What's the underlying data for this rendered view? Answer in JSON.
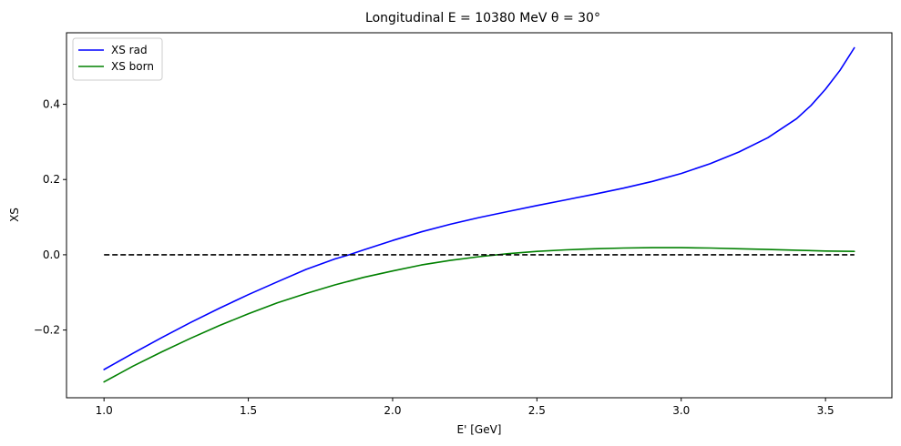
{
  "chart_data": {
    "type": "line",
    "title": "Longitudinal E = 10380 MeV θ = 30°",
    "xlabel": "E' [GeV]",
    "ylabel": "XS",
    "xlim": [
      0.87,
      3.73
    ],
    "ylim": [
      -0.38,
      0.59
    ],
    "xticks": [
      1.0,
      1.5,
      2.0,
      2.5,
      3.0,
      3.5
    ],
    "xtick_labels": [
      "1.0",
      "1.5",
      "2.0",
      "2.5",
      "3.0",
      "3.5"
    ],
    "yticks": [
      -0.2,
      0.0,
      0.2,
      0.4
    ],
    "ytick_labels": [
      "−0.2",
      "0.0",
      "0.2",
      "0.4"
    ],
    "grid": false,
    "legend": {
      "placement": "top-left",
      "entries": [
        "XS rad",
        "XS born"
      ]
    },
    "series": [
      {
        "name": "XS rad",
        "color": "#0000ff",
        "x": [
          1.0,
          1.1,
          1.2,
          1.3,
          1.4,
          1.5,
          1.6,
          1.7,
          1.8,
          1.85,
          1.9,
          2.0,
          2.1,
          2.2,
          2.3,
          2.4,
          2.5,
          2.6,
          2.7,
          2.8,
          2.9,
          3.0,
          3.1,
          3.2,
          3.3,
          3.4,
          3.45,
          3.5,
          3.55,
          3.6
        ],
        "y": [
          -0.305,
          -0.262,
          -0.22,
          -0.18,
          -0.142,
          -0.106,
          -0.072,
          -0.039,
          -0.011,
          0.0,
          0.013,
          0.038,
          0.061,
          0.081,
          0.099,
          0.115,
          0.131,
          0.146,
          0.161,
          0.177,
          0.195,
          0.216,
          0.242,
          0.273,
          0.311,
          0.362,
          0.397,
          0.44,
          0.49,
          0.55
        ]
      },
      {
        "name": "XS born",
        "color": "#008000",
        "x": [
          1.0,
          1.1,
          1.2,
          1.3,
          1.4,
          1.5,
          1.6,
          1.7,
          1.8,
          1.9,
          2.0,
          2.1,
          2.2,
          2.3,
          2.4,
          2.5,
          2.6,
          2.7,
          2.8,
          2.9,
          3.0,
          3.1,
          3.2,
          3.3,
          3.4,
          3.5,
          3.6
        ],
        "y": [
          -0.338,
          -0.296,
          -0.258,
          -0.222,
          -0.188,
          -0.157,
          -0.128,
          -0.103,
          -0.08,
          -0.06,
          -0.043,
          -0.027,
          -0.015,
          -0.005,
          0.003,
          0.009,
          0.013,
          0.016,
          0.018,
          0.019,
          0.019,
          0.018,
          0.016,
          0.014,
          0.012,
          0.01,
          0.009
        ]
      },
      {
        "name": "",
        "color": "#000000",
        "dashed": true,
        "x": [
          1.0,
          3.6
        ],
        "y": [
          0.0,
          0.0
        ]
      }
    ]
  }
}
